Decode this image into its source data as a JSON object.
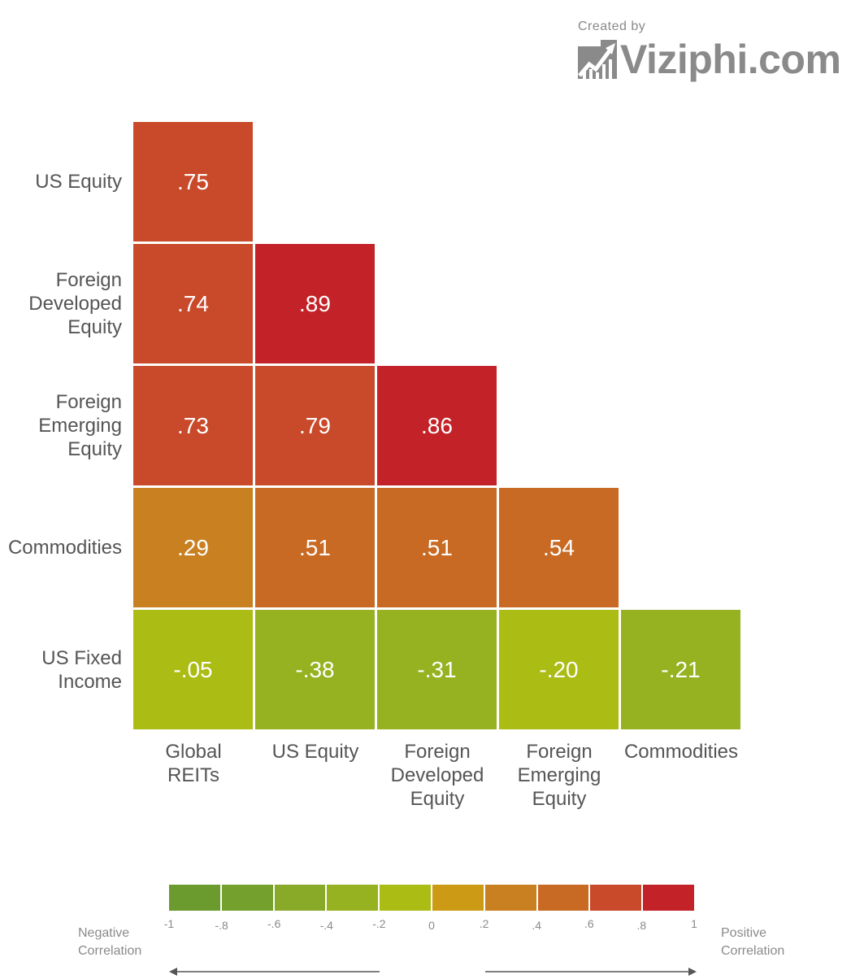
{
  "credit": {
    "label": "Created by",
    "brand": "Viziphi.com"
  },
  "chart_data": {
    "type": "heatmap",
    "rows": [
      "US Equity",
      "Foreign\nDeveloped\nEquity",
      "Foreign\nEmerging\nEquity",
      "Commodities",
      "US Fixed\nIncome"
    ],
    "columns": [
      "Global\nREITs",
      "US Equity",
      "Foreign\nDeveloped\nEquity",
      "Foreign\nEmerging\nEquity",
      "Commodities"
    ],
    "values": [
      [
        0.75,
        null,
        null,
        null,
        null
      ],
      [
        0.74,
        0.89,
        null,
        null,
        null
      ],
      [
        0.73,
        0.79,
        0.86,
        null,
        null
      ],
      [
        0.29,
        0.51,
        0.51,
        0.54,
        null
      ],
      [
        -0.05,
        -0.38,
        -0.31,
        -0.2,
        -0.21
      ]
    ],
    "value_labels": [
      [
        ".75",
        "",
        "",
        "",
        ""
      ],
      [
        ".74",
        ".89",
        "",
        "",
        ""
      ],
      [
        ".73",
        ".79",
        ".86",
        "",
        ""
      ],
      [
        ".29",
        ".51",
        ".51",
        ".54",
        ""
      ],
      [
        "-.05",
        "-.38",
        "-.31",
        "-.20",
        "-.21"
      ]
    ],
    "color_scale": {
      "range": [
        -1,
        1
      ],
      "ticks": [
        "-1",
        "-.8",
        "-.6",
        "-.4",
        "-.2",
        "0",
        ".2",
        ".4",
        ".6",
        ".8",
        "1"
      ],
      "colors": [
        "#6b9a2e",
        "#74a12d",
        "#88aa28",
        "#97b220",
        "#abbc14",
        "#cc9a14",
        "#c98020",
        "#c96a24",
        "#c84a2a",
        "#c32328"
      ],
      "negative_label": "Negative\nCorrelation",
      "positive_label": "Positive\nCorrelation"
    }
  }
}
